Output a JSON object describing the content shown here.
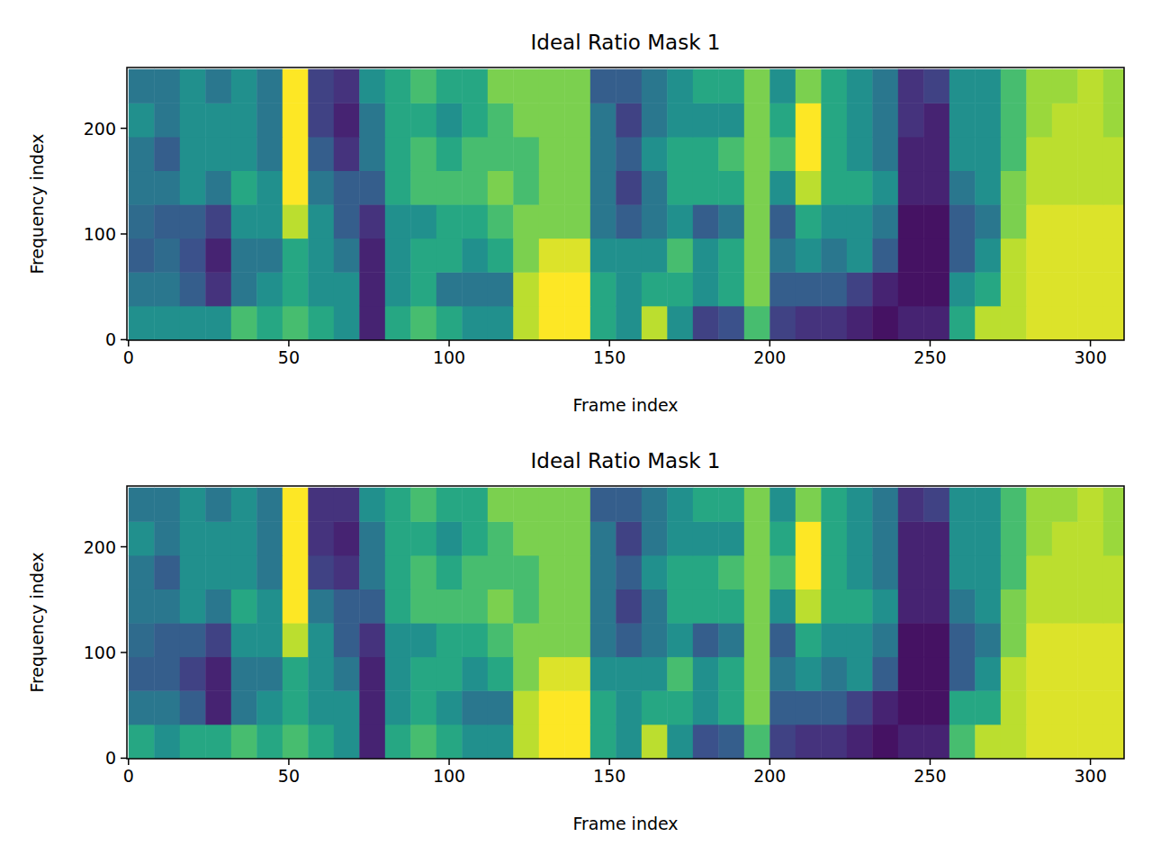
{
  "chart_data": [
    {
      "type": "heatmap",
      "title": "Ideal Ratio Mask 1",
      "x_label": "Frame index",
      "y_label": "Frequency index",
      "xlim": [
        -0.5,
        310.5
      ],
      "ylim": [
        -0.5,
        257.5
      ],
      "xticks": [
        0,
        50,
        100,
        150,
        200,
        250,
        300
      ],
      "yticks": [
        0,
        100,
        200
      ],
      "color_range": [
        0,
        1
      ],
      "x_edges": [
        0,
        8,
        16,
        24,
        32,
        40,
        48,
        56,
        64,
        72,
        80,
        88,
        96,
        104,
        112,
        120,
        128,
        136,
        144,
        152,
        160,
        168,
        176,
        184,
        192,
        200,
        208,
        216,
        224,
        232,
        240,
        248,
        256,
        264,
        272,
        280,
        288,
        296,
        304,
        312
      ],
      "y_edges": [
        0,
        32,
        64,
        96,
        128,
        160,
        192,
        224,
        256
      ],
      "cells": [
        [
          0.5,
          0.5,
          0.5,
          0.5,
          0.7,
          0.6,
          0.7,
          0.6,
          0.5,
          0.1,
          0.6,
          0.7,
          0.6,
          0.5,
          0.5,
          0.9,
          1,
          1,
          0.6,
          0.5,
          0.9,
          0.5,
          0.2,
          0.25,
          0.7,
          0.2,
          0.15,
          0.15,
          0.1,
          0.05,
          0.1,
          0.1,
          0.6,
          0.9,
          0.9,
          0.95,
          0.95,
          0.95,
          0.95
        ],
        [
          0.4,
          0.4,
          0.3,
          0.15,
          0.4,
          0.5,
          0.6,
          0.5,
          0.5,
          0.1,
          0.5,
          0.6,
          0.4,
          0.4,
          0.4,
          0.9,
          1,
          1,
          0.6,
          0.5,
          0.6,
          0.6,
          0.5,
          0.6,
          0.8,
          0.3,
          0.3,
          0.3,
          0.2,
          0.1,
          0.05,
          0.05,
          0.5,
          0.6,
          0.9,
          0.95,
          0.95,
          0.95,
          0.95
        ],
        [
          0.3,
          0.35,
          0.25,
          0.1,
          0.4,
          0.4,
          0.6,
          0.5,
          0.4,
          0.1,
          0.5,
          0.6,
          0.6,
          0.5,
          0.6,
          0.8,
          0.95,
          0.95,
          0.5,
          0.5,
          0.5,
          0.7,
          0.5,
          0.6,
          0.8,
          0.4,
          0.5,
          0.4,
          0.5,
          0.3,
          0.05,
          0.05,
          0.3,
          0.5,
          0.9,
          0.95,
          0.95,
          0.95,
          0.95
        ],
        [
          0.35,
          0.3,
          0.3,
          0.2,
          0.5,
          0.5,
          0.9,
          0.5,
          0.3,
          0.15,
          0.5,
          0.5,
          0.6,
          0.6,
          0.7,
          0.8,
          0.8,
          0.8,
          0.4,
          0.3,
          0.4,
          0.5,
          0.3,
          0.4,
          0.8,
          0.3,
          0.6,
          0.5,
          0.5,
          0.4,
          0.05,
          0.05,
          0.3,
          0.4,
          0.8,
          0.95,
          0.95,
          0.95,
          0.95
        ],
        [
          0.4,
          0.4,
          0.5,
          0.4,
          0.6,
          0.5,
          1,
          0.4,
          0.3,
          0.3,
          0.6,
          0.7,
          0.7,
          0.7,
          0.8,
          0.7,
          0.8,
          0.8,
          0.4,
          0.2,
          0.4,
          0.6,
          0.6,
          0.6,
          0.8,
          0.5,
          0.9,
          0.6,
          0.6,
          0.5,
          0.1,
          0.1,
          0.4,
          0.5,
          0.8,
          0.9,
          0.9,
          0.9,
          0.9
        ],
        [
          0.4,
          0.3,
          0.5,
          0.5,
          0.5,
          0.4,
          1,
          0.3,
          0.15,
          0.4,
          0.6,
          0.7,
          0.6,
          0.7,
          0.7,
          0.7,
          0.8,
          0.8,
          0.4,
          0.3,
          0.5,
          0.6,
          0.6,
          0.7,
          0.8,
          0.7,
          1,
          0.6,
          0.5,
          0.4,
          0.1,
          0.1,
          0.5,
          0.5,
          0.7,
          0.9,
          0.9,
          0.9,
          0.9
        ],
        [
          0.5,
          0.4,
          0.5,
          0.5,
          0.5,
          0.4,
          1,
          0.2,
          0.1,
          0.4,
          0.6,
          0.6,
          0.5,
          0.6,
          0.7,
          0.8,
          0.8,
          0.8,
          0.4,
          0.2,
          0.4,
          0.5,
          0.5,
          0.5,
          0.8,
          0.6,
          1,
          0.6,
          0.5,
          0.4,
          0.15,
          0.1,
          0.5,
          0.5,
          0.7,
          0.85,
          0.9,
          0.9,
          0.85
        ],
        [
          0.4,
          0.4,
          0.5,
          0.4,
          0.5,
          0.4,
          1,
          0.2,
          0.15,
          0.5,
          0.6,
          0.7,
          0.6,
          0.6,
          0.8,
          0.8,
          0.8,
          0.8,
          0.3,
          0.3,
          0.4,
          0.5,
          0.6,
          0.6,
          0.8,
          0.5,
          0.8,
          0.6,
          0.5,
          0.4,
          0.15,
          0.2,
          0.5,
          0.5,
          0.7,
          0.85,
          0.85,
          0.9,
          0.85
        ]
      ]
    },
    {
      "type": "heatmap",
      "title": "Ideal Ratio Mask 1",
      "x_label": "Frame index",
      "y_label": "Frequency index",
      "xlim": [
        -0.5,
        310.5
      ],
      "ylim": [
        -0.5,
        257.5
      ],
      "xticks": [
        0,
        50,
        100,
        150,
        200,
        250,
        300
      ],
      "yticks": [
        0,
        100,
        200
      ],
      "color_range": [
        0,
        1
      ],
      "x_edges": [
        0,
        8,
        16,
        24,
        32,
        40,
        48,
        56,
        64,
        72,
        80,
        88,
        96,
        104,
        112,
        120,
        128,
        136,
        144,
        152,
        160,
        168,
        176,
        184,
        192,
        200,
        208,
        216,
        224,
        232,
        240,
        248,
        256,
        264,
        272,
        280,
        288,
        296,
        304,
        312
      ],
      "y_edges": [
        0,
        32,
        64,
        96,
        128,
        160,
        192,
        224,
        256
      ],
      "cells": [
        [
          0.6,
          0.5,
          0.6,
          0.6,
          0.7,
          0.6,
          0.7,
          0.6,
          0.5,
          0.1,
          0.6,
          0.7,
          0.6,
          0.5,
          0.5,
          0.9,
          1,
          1,
          0.6,
          0.5,
          0.9,
          0.5,
          0.25,
          0.3,
          0.7,
          0.2,
          0.15,
          0.15,
          0.1,
          0.05,
          0.1,
          0.1,
          0.7,
          0.9,
          0.9,
          0.95,
          0.95,
          0.95,
          0.95
        ],
        [
          0.4,
          0.4,
          0.3,
          0.1,
          0.4,
          0.5,
          0.6,
          0.5,
          0.5,
          0.1,
          0.5,
          0.6,
          0.5,
          0.4,
          0.4,
          0.9,
          1,
          1,
          0.6,
          0.5,
          0.6,
          0.6,
          0.5,
          0.6,
          0.8,
          0.3,
          0.3,
          0.3,
          0.2,
          0.1,
          0.05,
          0.05,
          0.6,
          0.6,
          0.9,
          0.95,
          0.95,
          0.95,
          0.95
        ],
        [
          0.3,
          0.3,
          0.2,
          0.1,
          0.4,
          0.4,
          0.6,
          0.5,
          0.4,
          0.1,
          0.5,
          0.6,
          0.6,
          0.5,
          0.6,
          0.8,
          0.95,
          0.95,
          0.5,
          0.5,
          0.5,
          0.7,
          0.5,
          0.6,
          0.8,
          0.4,
          0.5,
          0.4,
          0.5,
          0.3,
          0.05,
          0.05,
          0.3,
          0.5,
          0.9,
          0.95,
          0.95,
          0.95,
          0.95
        ],
        [
          0.35,
          0.3,
          0.3,
          0.2,
          0.5,
          0.5,
          0.9,
          0.5,
          0.3,
          0.15,
          0.5,
          0.5,
          0.6,
          0.6,
          0.7,
          0.8,
          0.8,
          0.8,
          0.4,
          0.3,
          0.4,
          0.5,
          0.3,
          0.4,
          0.8,
          0.3,
          0.6,
          0.5,
          0.5,
          0.4,
          0.05,
          0.05,
          0.3,
          0.4,
          0.8,
          0.95,
          0.95,
          0.95,
          0.95
        ],
        [
          0.4,
          0.4,
          0.5,
          0.4,
          0.6,
          0.5,
          1,
          0.4,
          0.3,
          0.3,
          0.6,
          0.7,
          0.7,
          0.7,
          0.8,
          0.7,
          0.8,
          0.8,
          0.4,
          0.2,
          0.4,
          0.6,
          0.6,
          0.6,
          0.8,
          0.5,
          0.9,
          0.6,
          0.6,
          0.5,
          0.1,
          0.1,
          0.4,
          0.5,
          0.8,
          0.9,
          0.9,
          0.9,
          0.9
        ],
        [
          0.4,
          0.3,
          0.5,
          0.5,
          0.5,
          0.4,
          1,
          0.2,
          0.15,
          0.4,
          0.6,
          0.7,
          0.6,
          0.7,
          0.7,
          0.7,
          0.8,
          0.8,
          0.4,
          0.3,
          0.5,
          0.6,
          0.6,
          0.7,
          0.8,
          0.7,
          1,
          0.6,
          0.5,
          0.4,
          0.1,
          0.1,
          0.5,
          0.5,
          0.7,
          0.9,
          0.9,
          0.9,
          0.9
        ],
        [
          0.5,
          0.4,
          0.5,
          0.5,
          0.5,
          0.4,
          1,
          0.15,
          0.1,
          0.4,
          0.6,
          0.6,
          0.5,
          0.6,
          0.7,
          0.8,
          0.8,
          0.8,
          0.4,
          0.2,
          0.4,
          0.5,
          0.5,
          0.5,
          0.8,
          0.6,
          1,
          0.6,
          0.5,
          0.4,
          0.1,
          0.1,
          0.5,
          0.5,
          0.7,
          0.85,
          0.9,
          0.9,
          0.85
        ],
        [
          0.4,
          0.4,
          0.5,
          0.4,
          0.5,
          0.4,
          1,
          0.15,
          0.15,
          0.5,
          0.6,
          0.7,
          0.6,
          0.6,
          0.8,
          0.8,
          0.8,
          0.8,
          0.3,
          0.3,
          0.4,
          0.5,
          0.6,
          0.6,
          0.8,
          0.5,
          0.8,
          0.6,
          0.5,
          0.4,
          0.15,
          0.2,
          0.5,
          0.5,
          0.7,
          0.85,
          0.85,
          0.9,
          0.85
        ]
      ]
    }
  ]
}
